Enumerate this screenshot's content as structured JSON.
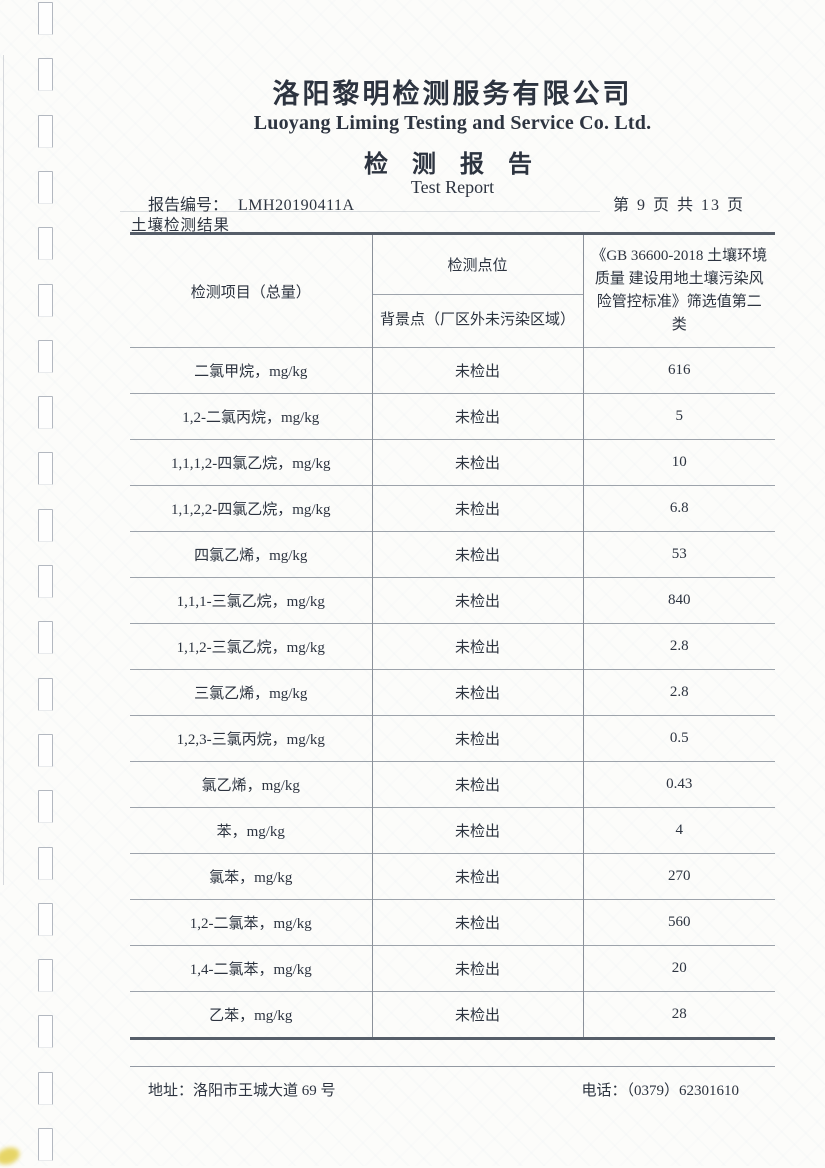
{
  "header": {
    "company_cn": "洛阳黎明检测服务有限公司",
    "company_en": "Luoyang Liming Testing and Service Co. Ltd.",
    "report_title_cn": "检 测 报 告",
    "report_title_en": "Test Report",
    "report_no_label": "报告编号：",
    "report_no": "LMH20190411A",
    "page_indicator": "第 9 页 共 13 页",
    "section_title": "土壤检测结果"
  },
  "table": {
    "col_item_header": "检测项目（总量）",
    "col_point_header": "检测点位",
    "col_point_subheader": "背景点（厂区外未污染区域）",
    "col_standard_header": "《GB 36600-2018 土壤环境质量 建设用地土壤污染风险管控标准》筛选值第二类",
    "rows": [
      {
        "item": "二氯甲烷，mg/kg",
        "result": "未检出",
        "limit": "616"
      },
      {
        "item": "1,2-二氯丙烷，mg/kg",
        "result": "未检出",
        "limit": "5"
      },
      {
        "item": "1,1,1,2-四氯乙烷，mg/kg",
        "result": "未检出",
        "limit": "10"
      },
      {
        "item": "1,1,2,2-四氯乙烷，mg/kg",
        "result": "未检出",
        "limit": "6.8"
      },
      {
        "item": "四氯乙烯，mg/kg",
        "result": "未检出",
        "limit": "53"
      },
      {
        "item": "1,1,1-三氯乙烷，mg/kg",
        "result": "未检出",
        "limit": "840"
      },
      {
        "item": "1,1,2-三氯乙烷，mg/kg",
        "result": "未检出",
        "limit": "2.8"
      },
      {
        "item": "三氯乙烯，mg/kg",
        "result": "未检出",
        "limit": "2.8"
      },
      {
        "item": "1,2,3-三氯丙烷，mg/kg",
        "result": "未检出",
        "limit": "0.5"
      },
      {
        "item": "氯乙烯，mg/kg",
        "result": "未检出",
        "limit": "0.43"
      },
      {
        "item": "苯，mg/kg",
        "result": "未检出",
        "limit": "4"
      },
      {
        "item": "氯苯，mg/kg",
        "result": "未检出",
        "limit": "270"
      },
      {
        "item": "1,2-二氯苯，mg/kg",
        "result": "未检出",
        "limit": "560"
      },
      {
        "item": "1,4-二氯苯，mg/kg",
        "result": "未检出",
        "limit": "20"
      },
      {
        "item": "乙苯，mg/kg",
        "result": "未检出",
        "limit": "28"
      }
    ]
  },
  "footer": {
    "address_label": "地址：",
    "address": "洛阳市王城大道 69 号",
    "phone_label": "电话：",
    "phone": "（0379）62301610"
  },
  "colors": {
    "ink": "#2d3440",
    "table_border_heavy": "#565e69",
    "table_border_light": "#7d8590",
    "paper": "#fcfcfa",
    "smudge_yellow": "#e3cf4e"
  }
}
